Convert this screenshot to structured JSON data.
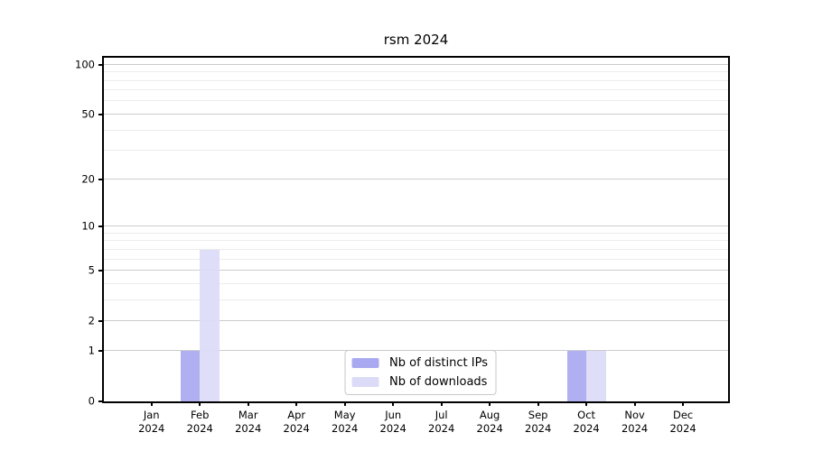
{
  "chart_data": {
    "type": "bar",
    "title": "rsm 2024",
    "xlabel": "",
    "ylabel": "",
    "categories": [
      "Jan 2024",
      "Feb 2024",
      "Mar 2024",
      "Apr 2024",
      "May 2024",
      "Jun 2024",
      "Jul 2024",
      "Aug 2024",
      "Sep 2024",
      "Oct 2024",
      "Nov 2024",
      "Dec 2024"
    ],
    "series": [
      {
        "name": "Nb of distinct IPs",
        "color": "#a9a9f1",
        "values": [
          0,
          1,
          0,
          0,
          0,
          0,
          0,
          0,
          0,
          1,
          0,
          0
        ]
      },
      {
        "name": "Nb of downloads",
        "color": "#dbdbf8",
        "values": [
          0,
          7,
          0,
          0,
          0,
          0,
          0,
          0,
          0,
          1,
          0,
          0
        ]
      }
    ],
    "yscale": "log1p",
    "ylim": [
      0,
      110
    ],
    "yticks": [
      0,
      1,
      2,
      5,
      10,
      20,
      50,
      100
    ],
    "minor_gridlines": [
      3,
      4,
      6,
      7,
      8,
      9,
      30,
      40,
      60,
      70,
      80,
      90
    ],
    "grid": "horizontal",
    "legend_position": "lower center"
  },
  "colors": {
    "major_grid": "#cccccc",
    "minor_grid": "#ececec",
    "axis": "#000000",
    "background": "#ffffff"
  }
}
